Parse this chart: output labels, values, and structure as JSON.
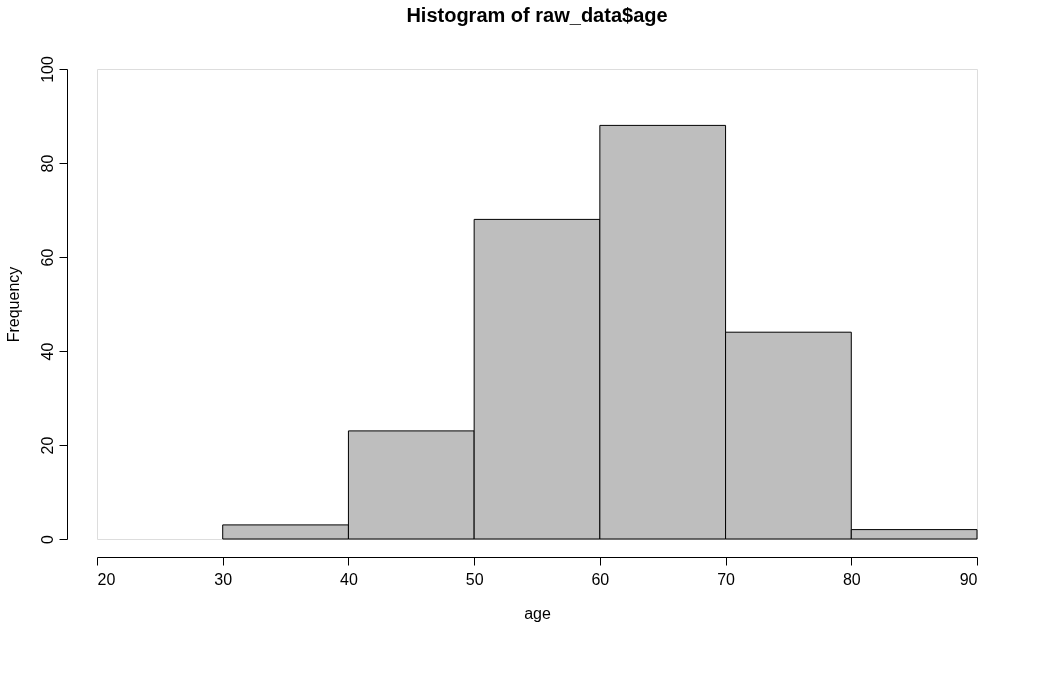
{
  "chart_data": {
    "type": "histogram",
    "title": "Histogram of raw_data$age",
    "xlabel": "age",
    "ylabel": "Frequency",
    "bins": [
      30,
      40,
      50,
      60,
      70,
      80,
      90
    ],
    "values": [
      3,
      23,
      68,
      88,
      44,
      2
    ],
    "color": "#bebebe",
    "xlim": [
      20,
      90
    ],
    "ylim": [
      0,
      100
    ],
    "xticks": [
      20,
      30,
      40,
      50,
      60,
      70,
      80,
      90
    ],
    "yticks": [
      0,
      20,
      40,
      60,
      80,
      100
    ],
    "grid": false
  }
}
